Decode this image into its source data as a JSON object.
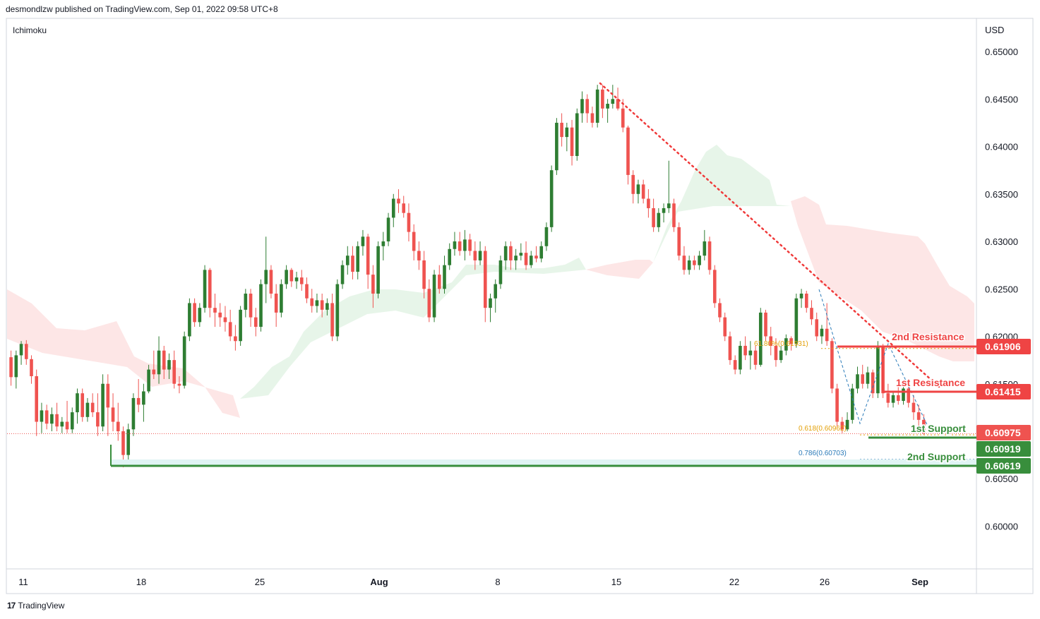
{
  "header": {
    "publisher": "desmondlzw published on TradingView.com, Sep 01, 2022 09:58 UTC+8"
  },
  "indicator_label": "Ichimoku",
  "currency": "USD",
  "footer": {
    "brand": "TradingView",
    "logo": "tradingview-logo-icon"
  },
  "colors": {
    "bull": "#2e7d32",
    "bear": "#ef5350",
    "kumo_bull": "#e6f4e8",
    "kumo_bear": "#fde3e3",
    "support": "#388e3c",
    "resistance": "#ef4444",
    "fib_618": "#e3a008",
    "fib_786": "#2a7ab8",
    "trend": "#f03a3a"
  },
  "chart_data": {
    "type": "candlestick",
    "ylim": [
      0.5955,
      0.6535
    ],
    "y_ticks": [
      "0.65000",
      "0.64500",
      "0.64000",
      "0.63500",
      "0.63000",
      "0.62500",
      "0.62000",
      "0.61500",
      "0.60500",
      "0.60000"
    ],
    "x_ticks": [
      "11",
      "18",
      "25",
      "Aug",
      "8",
      "15",
      "22",
      "26",
      "Sep"
    ],
    "levels": [
      {
        "label": "2nd Resistance",
        "value": "0.61906",
        "kind": "resistance"
      },
      {
        "label": "1st Resistance",
        "value": "0.61415",
        "kind": "resistance"
      },
      {
        "label": "1st Support",
        "value": "0.60919",
        "kind": "support"
      },
      {
        "label": "2nd Support",
        "value": "0.60619",
        "kind": "support"
      }
    ],
    "last_price": "0.60975",
    "fib": [
      {
        "label": "61.80%(0.61931)",
        "value": 0.61931
      },
      {
        "label": "0.618(0.60962)",
        "value": 0.60962
      },
      {
        "label": "0.786(0.60703)",
        "value": 0.60703
      }
    ],
    "candles": [
      [
        0.6178,
        0.6185,
        0.6148,
        0.6157
      ],
      [
        0.6157,
        0.6185,
        0.6145,
        0.618
      ],
      [
        0.618,
        0.6195,
        0.617,
        0.6192
      ],
      [
        0.6192,
        0.6196,
        0.617,
        0.6176
      ],
      [
        0.6176,
        0.618,
        0.615,
        0.6158
      ],
      [
        0.6158,
        0.6165,
        0.6095,
        0.611
      ],
      [
        0.611,
        0.613,
        0.6098,
        0.6122
      ],
      [
        0.6122,
        0.6128,
        0.6102,
        0.6108
      ],
      [
        0.6108,
        0.6125,
        0.61,
        0.6118
      ],
      [
        0.6118,
        0.613,
        0.61,
        0.6105
      ],
      [
        0.6105,
        0.6115,
        0.6098,
        0.611
      ],
      [
        0.611,
        0.6132,
        0.6098,
        0.6102
      ],
      [
        0.6102,
        0.6125,
        0.6098,
        0.612
      ],
      [
        0.612,
        0.6145,
        0.6108,
        0.614
      ],
      [
        0.614,
        0.6145,
        0.611,
        0.6115
      ],
      [
        0.6115,
        0.6135,
        0.611,
        0.613
      ],
      [
        0.613,
        0.614,
        0.6115,
        0.612
      ],
      [
        0.612,
        0.614,
        0.6095,
        0.6105
      ],
      [
        0.6105,
        0.616,
        0.61,
        0.615
      ],
      [
        0.615,
        0.616,
        0.6095,
        0.6125
      ],
      [
        0.6125,
        0.614,
        0.61,
        0.611
      ],
      [
        0.611,
        0.613,
        0.609,
        0.61
      ],
      [
        0.61,
        0.6105,
        0.6062,
        0.6075
      ],
      [
        0.6075,
        0.6108,
        0.607,
        0.6102
      ],
      [
        0.6102,
        0.614,
        0.6095,
        0.6135
      ],
      [
        0.6135,
        0.6155,
        0.612,
        0.6128
      ],
      [
        0.6128,
        0.615,
        0.611,
        0.6142
      ],
      [
        0.6142,
        0.617,
        0.614,
        0.6165
      ],
      [
        0.6165,
        0.6185,
        0.6155,
        0.616
      ],
      [
        0.616,
        0.62,
        0.615,
        0.6185
      ],
      [
        0.6185,
        0.619,
        0.6155,
        0.6165
      ],
      [
        0.6165,
        0.6182,
        0.6155,
        0.6175
      ],
      [
        0.6175,
        0.6185,
        0.6145,
        0.615
      ],
      [
        0.615,
        0.6158,
        0.614,
        0.6148
      ],
      [
        0.6148,
        0.6205,
        0.6145,
        0.62
      ],
      [
        0.62,
        0.624,
        0.6195,
        0.6235
      ],
      [
        0.6235,
        0.624,
        0.621,
        0.6215
      ],
      [
        0.6215,
        0.6235,
        0.621,
        0.623
      ],
      [
        0.623,
        0.6275,
        0.6225,
        0.627
      ],
      [
        0.627,
        0.6272,
        0.622,
        0.623
      ],
      [
        0.623,
        0.6245,
        0.621,
        0.6225
      ],
      [
        0.6225,
        0.6235,
        0.621,
        0.622
      ],
      [
        0.622,
        0.6232,
        0.6205,
        0.6215
      ],
      [
        0.6215,
        0.6228,
        0.6195,
        0.62
      ],
      [
        0.62,
        0.6212,
        0.6185,
        0.6195
      ],
      [
        0.6195,
        0.6232,
        0.619,
        0.6228
      ],
      [
        0.6228,
        0.625,
        0.622,
        0.6245
      ],
      [
        0.6245,
        0.625,
        0.621,
        0.622
      ],
      [
        0.622,
        0.623,
        0.62,
        0.621
      ],
      [
        0.621,
        0.626,
        0.6205,
        0.6255
      ],
      [
        0.6255,
        0.6305,
        0.6235,
        0.627
      ],
      [
        0.627,
        0.6275,
        0.624,
        0.6245
      ],
      [
        0.6245,
        0.6255,
        0.621,
        0.6225
      ],
      [
        0.6225,
        0.626,
        0.622,
        0.6255
      ],
      [
        0.6255,
        0.6275,
        0.625,
        0.627
      ],
      [
        0.627,
        0.6272,
        0.6252,
        0.6258
      ],
      [
        0.6258,
        0.6268,
        0.625,
        0.6262
      ],
      [
        0.6262,
        0.627,
        0.6248,
        0.6255
      ],
      [
        0.6255,
        0.6262,
        0.6235,
        0.624
      ],
      [
        0.624,
        0.625,
        0.6225,
        0.6232
      ],
      [
        0.6232,
        0.6245,
        0.6225,
        0.6238
      ],
      [
        0.6238,
        0.6245,
        0.622,
        0.6228
      ],
      [
        0.6228,
        0.624,
        0.6222,
        0.6235
      ],
      [
        0.6235,
        0.6245,
        0.6195,
        0.62
      ],
      [
        0.62,
        0.626,
        0.6195,
        0.6255
      ],
      [
        0.6255,
        0.628,
        0.625,
        0.6275
      ],
      [
        0.6275,
        0.6295,
        0.6265,
        0.6285
      ],
      [
        0.6285,
        0.6295,
        0.626,
        0.6268
      ],
      [
        0.6268,
        0.63,
        0.626,
        0.6295
      ],
      [
        0.6295,
        0.6312,
        0.6285,
        0.6305
      ],
      [
        0.6305,
        0.6308,
        0.625,
        0.6265
      ],
      [
        0.6265,
        0.6275,
        0.623,
        0.6245
      ],
      [
        0.6245,
        0.63,
        0.624,
        0.6295
      ],
      [
        0.6295,
        0.631,
        0.628,
        0.63
      ],
      [
        0.63,
        0.633,
        0.6295,
        0.6325
      ],
      [
        0.6325,
        0.635,
        0.6315,
        0.6345
      ],
      [
        0.6345,
        0.6355,
        0.633,
        0.634
      ],
      [
        0.634,
        0.6348,
        0.6325,
        0.633
      ],
      [
        0.633,
        0.634,
        0.63,
        0.631
      ],
      [
        0.631,
        0.6318,
        0.628,
        0.629
      ],
      [
        0.629,
        0.63,
        0.627,
        0.628
      ],
      [
        0.628,
        0.629,
        0.624,
        0.625
      ],
      [
        0.625,
        0.626,
        0.6215,
        0.622
      ],
      [
        0.622,
        0.627,
        0.6215,
        0.6265
      ],
      [
        0.6265,
        0.6275,
        0.6245,
        0.625
      ],
      [
        0.625,
        0.6285,
        0.6245,
        0.6275
      ],
      [
        0.6275,
        0.6298,
        0.627,
        0.6292
      ],
      [
        0.6292,
        0.631,
        0.6285,
        0.63
      ],
      [
        0.63,
        0.631,
        0.6285,
        0.629
      ],
      [
        0.629,
        0.6312,
        0.628,
        0.6302
      ],
      [
        0.6302,
        0.6308,
        0.6285,
        0.629
      ],
      [
        0.629,
        0.63,
        0.627,
        0.628
      ],
      [
        0.628,
        0.63,
        0.6275,
        0.629
      ],
      [
        0.629,
        0.6295,
        0.6215,
        0.623
      ],
      [
        0.623,
        0.6245,
        0.6215,
        0.624
      ],
      [
        0.624,
        0.626,
        0.6225,
        0.6255
      ],
      [
        0.6255,
        0.6285,
        0.625,
        0.628
      ],
      [
        0.628,
        0.63,
        0.627,
        0.6295
      ],
      [
        0.6295,
        0.63,
        0.627,
        0.628
      ],
      [
        0.628,
        0.6292,
        0.627,
        0.6285
      ],
      [
        0.6285,
        0.6298,
        0.628,
        0.6288
      ],
      [
        0.6288,
        0.63,
        0.627,
        0.6275
      ],
      [
        0.6275,
        0.629,
        0.6272,
        0.6285
      ],
      [
        0.6285,
        0.6295,
        0.6278,
        0.6282
      ],
      [
        0.6282,
        0.63,
        0.6278,
        0.6295
      ],
      [
        0.6295,
        0.632,
        0.629,
        0.6315
      ],
      [
        0.6315,
        0.638,
        0.631,
        0.6375
      ],
      [
        0.6375,
        0.643,
        0.637,
        0.6425
      ],
      [
        0.6425,
        0.6435,
        0.64,
        0.641
      ],
      [
        0.641,
        0.6425,
        0.6395,
        0.642
      ],
      [
        0.642,
        0.6428,
        0.638,
        0.639
      ],
      [
        0.639,
        0.644,
        0.6385,
        0.6435
      ],
      [
        0.6435,
        0.6458,
        0.6425,
        0.645
      ],
      [
        0.645,
        0.6455,
        0.6425,
        0.6435
      ],
      [
        0.6435,
        0.6442,
        0.642,
        0.6425
      ],
      [
        0.6425,
        0.6465,
        0.642,
        0.646
      ],
      [
        0.646,
        0.6465,
        0.643,
        0.644
      ],
      [
        0.644,
        0.645,
        0.6425,
        0.6445
      ],
      [
        0.6445,
        0.6465,
        0.644,
        0.645
      ],
      [
        0.645,
        0.6462,
        0.6438,
        0.644
      ],
      [
        0.644,
        0.645,
        0.6415,
        0.642
      ],
      [
        0.642,
        0.6422,
        0.636,
        0.637
      ],
      [
        0.637,
        0.6375,
        0.634,
        0.635
      ],
      [
        0.635,
        0.6365,
        0.634,
        0.636
      ],
      [
        0.636,
        0.6365,
        0.634,
        0.6345
      ],
      [
        0.6345,
        0.6355,
        0.6325,
        0.6335
      ],
      [
        0.6335,
        0.6345,
        0.631,
        0.6315
      ],
      [
        0.6315,
        0.6335,
        0.631,
        0.633
      ],
      [
        0.633,
        0.634,
        0.632,
        0.6335
      ],
      [
        0.6335,
        0.6385,
        0.633,
        0.634
      ],
      [
        0.634,
        0.6345,
        0.631,
        0.6315
      ],
      [
        0.6315,
        0.632,
        0.628,
        0.6285
      ],
      [
        0.6285,
        0.6295,
        0.6265,
        0.627
      ],
      [
        0.627,
        0.6285,
        0.6265,
        0.628
      ],
      [
        0.628,
        0.6285,
        0.627,
        0.6275
      ],
      [
        0.6275,
        0.629,
        0.627,
        0.6285
      ],
      [
        0.6285,
        0.6312,
        0.628,
        0.63
      ],
      [
        0.63,
        0.6305,
        0.6265,
        0.627
      ],
      [
        0.627,
        0.6275,
        0.623,
        0.6235
      ],
      [
        0.6235,
        0.624,
        0.6215,
        0.622
      ],
      [
        0.622,
        0.6225,
        0.6195,
        0.62
      ],
      [
        0.62,
        0.6205,
        0.617,
        0.6175
      ],
      [
        0.6175,
        0.618,
        0.616,
        0.6165
      ],
      [
        0.6165,
        0.6195,
        0.616,
        0.619
      ],
      [
        0.619,
        0.62,
        0.6175,
        0.618
      ],
      [
        0.618,
        0.6195,
        0.6165,
        0.6185
      ],
      [
        0.6185,
        0.619,
        0.6165,
        0.617
      ],
      [
        0.617,
        0.623,
        0.6168,
        0.6225
      ],
      [
        0.6225,
        0.6228,
        0.6195,
        0.62
      ],
      [
        0.62,
        0.621,
        0.618,
        0.619
      ],
      [
        0.619,
        0.6198,
        0.6168,
        0.6175
      ],
      [
        0.6175,
        0.619,
        0.6172,
        0.6185
      ],
      [
        0.6185,
        0.6202,
        0.618,
        0.6198
      ],
      [
        0.6198,
        0.62,
        0.6185,
        0.6192
      ],
      [
        0.6192,
        0.6245,
        0.6188,
        0.624
      ],
      [
        0.624,
        0.625,
        0.623,
        0.6245
      ],
      [
        0.6245,
        0.6248,
        0.6225,
        0.623
      ],
      [
        0.623,
        0.6238,
        0.6212,
        0.6218
      ],
      [
        0.6218,
        0.6225,
        0.6195,
        0.62
      ],
      [
        0.62,
        0.6212,
        0.6192,
        0.6208
      ],
      [
        0.6208,
        0.6235,
        0.619,
        0.6195
      ],
      [
        0.6195,
        0.6198,
        0.614,
        0.6145
      ],
      [
        0.6145,
        0.615,
        0.6105,
        0.611
      ],
      [
        0.611,
        0.6115,
        0.6098,
        0.6102
      ],
      [
        0.6102,
        0.612,
        0.61,
        0.6112
      ],
      [
        0.6112,
        0.615,
        0.6108,
        0.6145
      ],
      [
        0.6145,
        0.6168,
        0.614,
        0.616
      ],
      [
        0.616,
        0.617,
        0.6145,
        0.615
      ],
      [
        0.615,
        0.6168,
        0.6145,
        0.6162
      ],
      [
        0.6162,
        0.6165,
        0.6135,
        0.614
      ],
      [
        0.614,
        0.6195,
        0.6135,
        0.619
      ],
      [
        0.619,
        0.6192,
        0.6135,
        0.614
      ],
      [
        0.614,
        0.615,
        0.6125,
        0.613
      ],
      [
        0.613,
        0.6142,
        0.6125,
        0.6138
      ],
      [
        0.6138,
        0.615,
        0.6128,
        0.6132
      ],
      [
        0.6132,
        0.6148,
        0.6128,
        0.6145
      ],
      [
        0.6145,
        0.615,
        0.6125,
        0.613
      ],
      [
        0.613,
        0.6138,
        0.6112,
        0.612
      ],
      [
        0.612,
        0.6128,
        0.6105,
        0.6112
      ],
      [
        0.6112,
        0.6118,
        0.6096,
        0.6098
      ]
    ]
  }
}
